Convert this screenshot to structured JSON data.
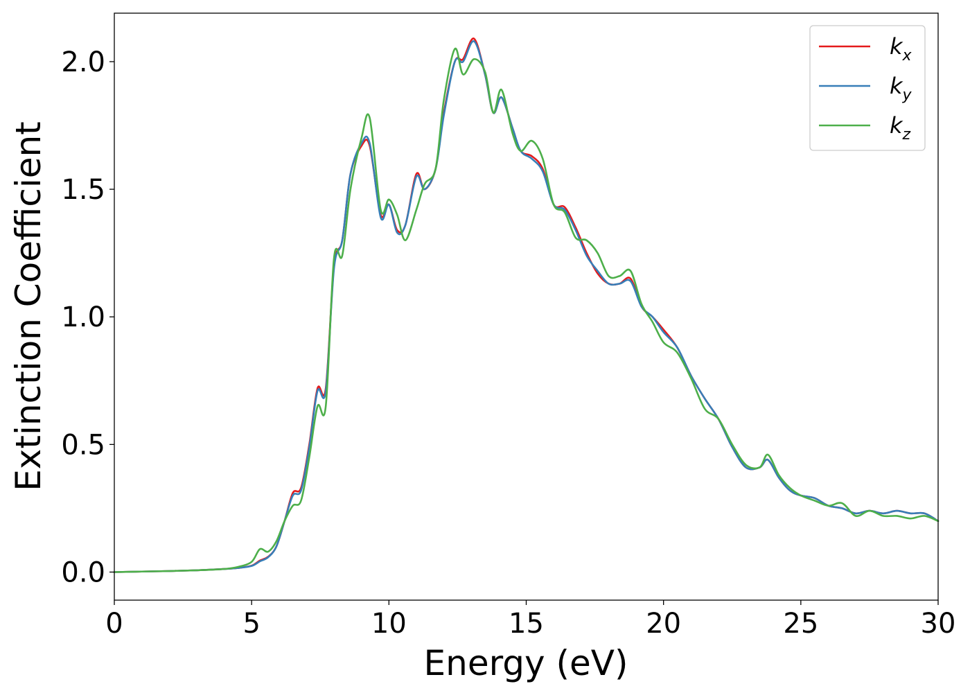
{
  "chart_data": {
    "type": "line",
    "xlabel": "Energy (eV)",
    "ylabel": "Extinction Coefficient",
    "xlim": [
      0,
      30
    ],
    "ylim": [
      -0.11,
      2.19
    ],
    "xticks": [
      0,
      5,
      10,
      15,
      20,
      25,
      30
    ],
    "yticks": [
      0.0,
      0.5,
      1.0,
      1.5,
      2.0
    ],
    "xtick_labels": [
      "0",
      "5",
      "10",
      "15",
      "20",
      "25",
      "30"
    ],
    "ytick_labels": [
      "0.0",
      "0.5",
      "1.0",
      "1.5",
      "2.0"
    ],
    "grid": false,
    "legend_position": "top-right",
    "series": [
      {
        "name": "k",
        "subscript": "x",
        "color": "#e41a1c",
        "x": [
          0,
          1,
          2,
          3,
          4,
          4.5,
          5,
          5.3,
          5.6,
          5.9,
          6.2,
          6.5,
          6.8,
          7.1,
          7.4,
          7.7,
          8.0,
          8.3,
          8.6,
          9.0,
          9.3,
          9.7,
          10.0,
          10.3,
          10.6,
          11.0,
          11.3,
          11.7,
          12.0,
          12.4,
          12.7,
          13.1,
          13.5,
          13.8,
          14.1,
          14.5,
          14.8,
          15.2,
          15.6,
          16.0,
          16.4,
          16.8,
          17.2,
          17.6,
          18.0,
          18.4,
          18.8,
          19.2,
          19.6,
          20.0,
          20.5,
          21.0,
          21.5,
          22.0,
          22.5,
          23.0,
          23.5,
          23.8,
          24.2,
          24.6,
          25.0,
          25.5,
          26.0,
          26.5,
          27.0,
          27.5,
          28.0,
          28.5,
          29.0,
          29.5,
          30.0
        ],
        "y": [
          0.0,
          0.002,
          0.004,
          0.007,
          0.012,
          0.016,
          0.025,
          0.045,
          0.06,
          0.1,
          0.2,
          0.31,
          0.33,
          0.5,
          0.72,
          0.72,
          1.2,
          1.3,
          1.56,
          1.67,
          1.67,
          1.4,
          1.44,
          1.34,
          1.36,
          1.56,
          1.5,
          1.58,
          1.8,
          2.0,
          2.01,
          2.09,
          1.95,
          1.8,
          1.86,
          1.74,
          1.65,
          1.63,
          1.58,
          1.44,
          1.43,
          1.35,
          1.25,
          1.17,
          1.13,
          1.13,
          1.15,
          1.04,
          1.0,
          0.95,
          0.88,
          0.77,
          0.68,
          0.6,
          0.49,
          0.41,
          0.41,
          0.44,
          0.37,
          0.32,
          0.3,
          0.29,
          0.26,
          0.25,
          0.23,
          0.24,
          0.23,
          0.24,
          0.23,
          0.23,
          0.2
        ]
      },
      {
        "name": "k",
        "subscript": "y",
        "color": "#377eb8",
        "x": [
          0,
          1,
          2,
          3,
          4,
          4.5,
          5,
          5.3,
          5.6,
          5.9,
          6.2,
          6.5,
          6.8,
          7.1,
          7.4,
          7.7,
          8.0,
          8.3,
          8.6,
          9.0,
          9.3,
          9.7,
          10.0,
          10.3,
          10.6,
          11.0,
          11.3,
          11.7,
          12.0,
          12.4,
          12.7,
          13.1,
          13.5,
          13.8,
          14.1,
          14.5,
          14.8,
          15.2,
          15.6,
          16.0,
          16.4,
          16.8,
          17.2,
          17.6,
          18.0,
          18.4,
          18.8,
          19.2,
          19.6,
          20.0,
          20.5,
          21.0,
          21.5,
          22.0,
          22.5,
          23.0,
          23.5,
          23.8,
          24.2,
          24.6,
          25.0,
          25.5,
          26.0,
          26.5,
          27.0,
          27.5,
          28.0,
          28.5,
          29.0,
          29.5,
          30.0
        ],
        "y": [
          0.0,
          0.002,
          0.004,
          0.007,
          0.012,
          0.016,
          0.024,
          0.042,
          0.058,
          0.1,
          0.2,
          0.3,
          0.32,
          0.49,
          0.71,
          0.71,
          1.19,
          1.3,
          1.56,
          1.68,
          1.68,
          1.39,
          1.44,
          1.33,
          1.36,
          1.55,
          1.5,
          1.58,
          1.79,
          2.0,
          2.0,
          2.08,
          1.95,
          1.8,
          1.86,
          1.74,
          1.65,
          1.62,
          1.57,
          1.44,
          1.42,
          1.34,
          1.24,
          1.18,
          1.13,
          1.13,
          1.14,
          1.04,
          1.0,
          0.94,
          0.88,
          0.77,
          0.68,
          0.6,
          0.49,
          0.41,
          0.41,
          0.44,
          0.37,
          0.32,
          0.3,
          0.29,
          0.26,
          0.25,
          0.23,
          0.24,
          0.23,
          0.24,
          0.23,
          0.23,
          0.2
        ]
      },
      {
        "name": "k",
        "subscript": "z",
        "color": "#4daf4a",
        "x": [
          0,
          1,
          2,
          3,
          4,
          4.5,
          5,
          5.3,
          5.6,
          5.9,
          6.2,
          6.5,
          6.8,
          7.1,
          7.4,
          7.7,
          8.0,
          8.3,
          8.6,
          9.0,
          9.3,
          9.7,
          10.0,
          10.3,
          10.6,
          11.0,
          11.3,
          11.7,
          12.0,
          12.4,
          12.7,
          13.1,
          13.5,
          13.8,
          14.1,
          14.5,
          14.8,
          15.2,
          15.6,
          16.0,
          16.4,
          16.8,
          17.2,
          17.6,
          18.0,
          18.4,
          18.8,
          19.2,
          19.6,
          20.0,
          20.5,
          21.0,
          21.5,
          22.0,
          22.5,
          23.0,
          23.5,
          23.8,
          24.2,
          24.6,
          25.0,
          25.5,
          26.0,
          26.5,
          27.0,
          27.5,
          28.0,
          28.5,
          29.0,
          29.5,
          30.0
        ],
        "y": [
          0.0,
          0.002,
          0.004,
          0.007,
          0.012,
          0.02,
          0.04,
          0.09,
          0.08,
          0.12,
          0.2,
          0.26,
          0.28,
          0.45,
          0.65,
          0.65,
          1.23,
          1.24,
          1.5,
          1.7,
          1.78,
          1.42,
          1.46,
          1.4,
          1.3,
          1.42,
          1.52,
          1.58,
          1.85,
          2.05,
          1.95,
          2.01,
          1.96,
          1.8,
          1.89,
          1.72,
          1.65,
          1.69,
          1.62,
          1.44,
          1.41,
          1.31,
          1.3,
          1.25,
          1.16,
          1.16,
          1.18,
          1.05,
          0.98,
          0.9,
          0.86,
          0.76,
          0.64,
          0.6,
          0.5,
          0.42,
          0.41,
          0.46,
          0.38,
          0.33,
          0.3,
          0.28,
          0.26,
          0.27,
          0.22,
          0.24,
          0.22,
          0.22,
          0.21,
          0.22,
          0.2
        ]
      }
    ]
  }
}
